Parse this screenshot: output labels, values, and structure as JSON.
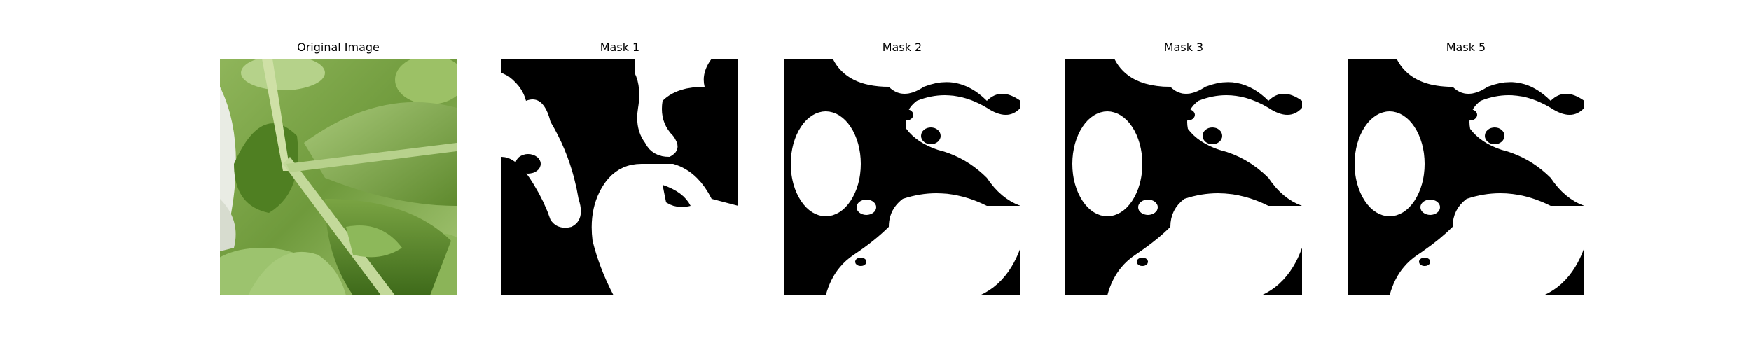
{
  "figure": {
    "panels": [
      {
        "title": "Original Image",
        "kind": "photo"
      },
      {
        "title": "Mask 1",
        "kind": "mask"
      },
      {
        "title": "Mask 2",
        "kind": "mask"
      },
      {
        "title": "Mask 3",
        "kind": "mask"
      },
      {
        "title": "Mask 5",
        "kind": "mask"
      }
    ],
    "colors": {
      "mask_foreground": "#ffffff",
      "mask_background": "#000000",
      "leaf_dark": "#3f6b1c",
      "leaf_mid": "#7ea64a",
      "leaf_light": "#b9d48a"
    }
  }
}
